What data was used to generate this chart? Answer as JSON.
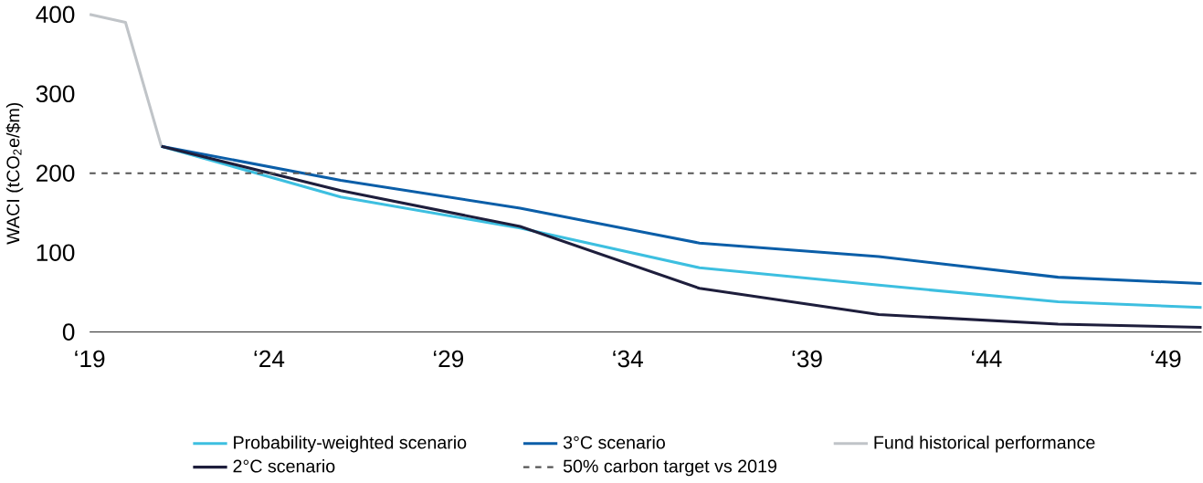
{
  "chart_data": {
    "type": "line",
    "ylabel": "WACI (tCO$_{2}$e/$m)",
    "xlim": [
      19,
      50
    ],
    "ylim": [
      0,
      400
    ],
    "xticks": [
      {
        "value": 19,
        "label": "‘19"
      },
      {
        "value": 24,
        "label": "‘24"
      },
      {
        "value": 29,
        "label": "‘29"
      },
      {
        "value": 34,
        "label": "‘34"
      },
      {
        "value": 39,
        "label": "‘39"
      },
      {
        "value": 44,
        "label": "‘44"
      },
      {
        "value": 49,
        "label": "‘49"
      }
    ],
    "yticks": [
      0,
      100,
      200,
      300,
      400
    ],
    "series": [
      {
        "name": "Probability-weighted scenario",
        "color": "#3dbfe0",
        "x": [
          21,
          26,
          31,
          36,
          41,
          46,
          50
        ],
        "values": [
          234,
          170,
          131,
          81,
          59,
          38,
          31
        ]
      },
      {
        "name": "3°C scenario",
        "color": "#0b5ea8",
        "x": [
          21,
          26,
          31,
          36,
          41,
          46,
          50
        ],
        "values": [
          234,
          191,
          156,
          112,
          95,
          69,
          61
        ]
      },
      {
        "name": "Fund historical performance",
        "color": "#c0c4c8",
        "x": [
          19,
          20,
          21
        ],
        "values": [
          400,
          390,
          234
        ]
      },
      {
        "name": "2°C scenario",
        "color": "#1e1e3c",
        "x": [
          21,
          26,
          31,
          36,
          41,
          46,
          50
        ],
        "values": [
          234,
          178,
          133,
          55,
          22,
          10,
          6
        ]
      }
    ],
    "ref_lines": [
      {
        "axis": "y",
        "value": 200,
        "label": "50% carbon target vs 2019",
        "color": "#555555",
        "line_style": "dashed"
      }
    ],
    "grid": false,
    "legend": "bottom",
    "marker": "none",
    "line_style": "solid"
  }
}
